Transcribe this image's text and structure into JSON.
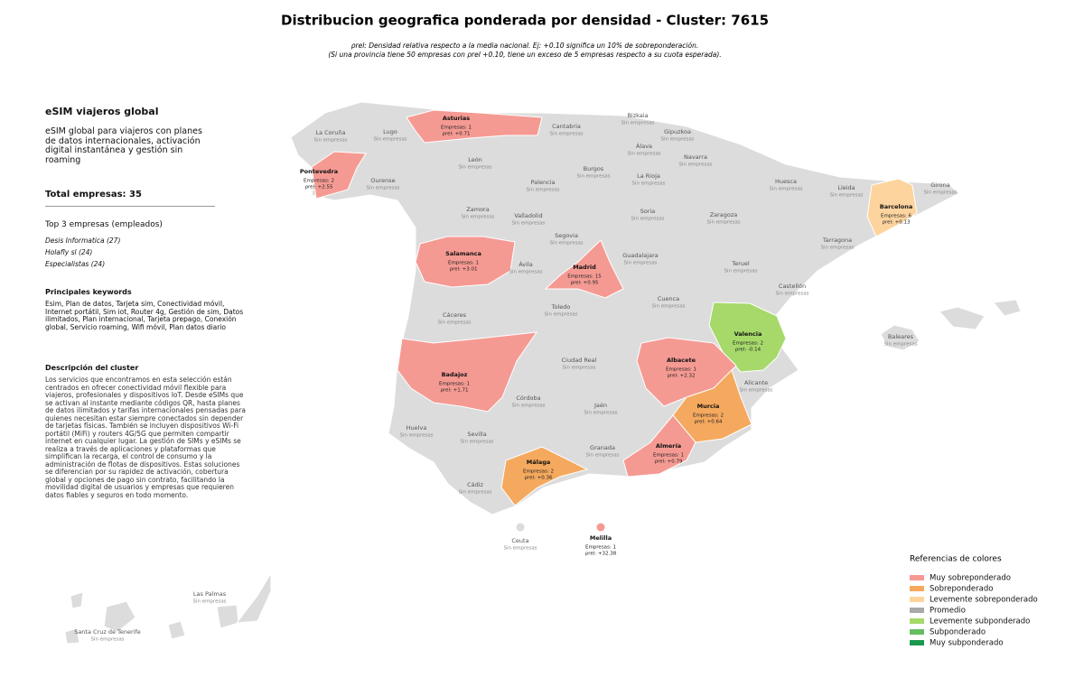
{
  "header": {
    "title": "Distribucion geografica ponderada por densidad - Cluster: 7615",
    "subtitle": [
      "ρrel: Densidad relativa respecto a la media nacional. Ej: +0.10 significa un 10% de sobreponderación.",
      "(Si una provincia tiene 50 empresas con ρrel +0.10, tiene un exceso de 5 empresas respecto a su cuota esperada)."
    ]
  },
  "sidebar": {
    "name": "eSIM viajeros global",
    "summary": "eSIM global para viajeros con planes de datos internacionales, activación digital instantánea y gestión sin roaming",
    "total": "Total empresas: 35",
    "top_title": "Top 3 empresas (empleados)",
    "top": [
      "Desis Informatica (27)",
      "Holafly sl (24)",
      "Especialistas (24)"
    ],
    "keywords_title": "Principales keywords",
    "keywords": "Esim, Plan de datos, Tarjeta sim, Conectividad móvil, Internet portátil, Sim iot, Router 4g, Gestión de sim, Datos ilimitados, Plan internacional, Tarjeta prepago, Conexión global, Servicio roaming, Wifi móvil, Plan datos diario",
    "description_title": "Descripción del cluster",
    "description": "Los servicios que encontramos en esta selección están centrados en ofrecer conectividad móvil flexible para viajeros, profesionales y dispositivos IoT. Desde eSIMs que se activan al instante mediante códigos QR, hasta planes de datos ilimitados y tarifas internacionales pensadas para quienes necesitan estar siempre conectados sin depender de tarjetas físicas. También se incluyen dispositivos Wi-Fi portátil (MiFi) y routers 4G/5G que permiten compartir internet en cualquier lugar. La gestión de SIMs y eSIMs se realiza a través de aplicaciones y plataformas que simplifican la recarga, el control de consumo y la administración de flotas de dispositivos. Estas soluciones se diferencian por su rapidez de activación, cobertura global y opciones de pago sin contrato, facilitando la movilidad digital de usuarios y empresas que requieren datos fiables y seguros en todo momento."
  },
  "provinces": [
    {
      "name": "Asturias",
      "empresas": "Empresas: 1",
      "rho": "ρrel: +0.71",
      "color": "#f59a93"
    },
    {
      "name": "Pontevedra",
      "empresas": "Empresas: 2",
      "rho": "ρrel: +2.55",
      "color": "#f59a93"
    },
    {
      "name": "La Coruña",
      "status": "Sin empresas"
    },
    {
      "name": "Lugo",
      "status": "Sin empresas"
    },
    {
      "name": "Ourense",
      "status": "Sin empresas"
    },
    {
      "name": "León",
      "status": "Sin empresas"
    },
    {
      "name": "Cantabria",
      "status": "Sin empresas"
    },
    {
      "name": "Bizkaia",
      "status": "Sin empresas"
    },
    {
      "name": "Gipuzkoa",
      "status": "Sin empresas"
    },
    {
      "name": "Álava",
      "status": "Sin empresas"
    },
    {
      "name": "Navarra",
      "status": "Sin empresas"
    },
    {
      "name": "Palencia",
      "status": "Sin empresas"
    },
    {
      "name": "Burgos",
      "status": "Sin empresas"
    },
    {
      "name": "La Rioja",
      "status": "Sin empresas"
    },
    {
      "name": "Huesca",
      "status": "Sin empresas"
    },
    {
      "name": "Lleida",
      "status": "Sin empresas"
    },
    {
      "name": "Girona",
      "status": "Sin empresas"
    },
    {
      "name": "Barcelona",
      "empresas": "Empresas: 6",
      "rho": "ρrel: +0.13",
      "color": "#fdd49e"
    },
    {
      "name": "Zamora",
      "status": "Sin empresas"
    },
    {
      "name": "Valladolid",
      "status": "Sin empresas"
    },
    {
      "name": "Soria",
      "status": "Sin empresas"
    },
    {
      "name": "Zaragoza",
      "status": "Sin empresas"
    },
    {
      "name": "Segovia",
      "status": "Sin empresas"
    },
    {
      "name": "Tarragona",
      "status": "Sin empresas"
    },
    {
      "name": "Salamanca",
      "empresas": "Empresas: 1",
      "rho": "ρrel: +3.01",
      "color": "#f59a93"
    },
    {
      "name": "Ávila",
      "status": "Sin empresas"
    },
    {
      "name": "Madrid",
      "empresas": "Empresas: 15",
      "rho": "ρrel: +0.95",
      "color": "#f59a93"
    },
    {
      "name": "Guadalajara",
      "status": "Sin empresas"
    },
    {
      "name": "Teruel",
      "status": "Sin empresas"
    },
    {
      "name": "Castellón",
      "status": "Sin empresas"
    },
    {
      "name": "Cáceres",
      "status": "Sin empresas"
    },
    {
      "name": "Toledo",
      "status": "Sin empresas"
    },
    {
      "name": "Cuenca",
      "status": "Sin empresas"
    },
    {
      "name": "Valencia",
      "empresas": "Empresas: 2",
      "rho": "ρrel: -0.14",
      "color": "#a6d96a"
    },
    {
      "name": "Baleares",
      "status": "Sin empresas"
    },
    {
      "name": "Badajoz",
      "empresas": "Empresas: 1",
      "rho": "ρrel: +1.71",
      "color": "#f59a93"
    },
    {
      "name": "Ciudad Real",
      "status": "Sin empresas"
    },
    {
      "name": "Albacete",
      "empresas": "Empresas: 1",
      "rho": "ρrel: +2.32",
      "color": "#f59a93"
    },
    {
      "name": "Alicante",
      "status": "Sin empresas"
    },
    {
      "name": "Córdoba",
      "status": "Sin empresas"
    },
    {
      "name": "Jaén",
      "status": "Sin empresas"
    },
    {
      "name": "Murcia",
      "empresas": "Empresas: 2",
      "rho": "ρrel: +0.64",
      "color": "#f5a95e"
    },
    {
      "name": "Huelva",
      "status": "Sin empresas"
    },
    {
      "name": "Sevilla",
      "status": "Sin empresas"
    },
    {
      "name": "Granada",
      "status": "Sin empresas"
    },
    {
      "name": "Almería",
      "empresas": "Empresas: 1",
      "rho": "ρrel: +0.79",
      "color": "#f59a93"
    },
    {
      "name": "Málaga",
      "empresas": "Empresas: 2",
      "rho": "ρrel: +0.36",
      "color": "#f5a95e"
    },
    {
      "name": "Cádiz",
      "status": "Sin empresas"
    },
    {
      "name": "Ceuta",
      "status": "Sin empresas"
    },
    {
      "name": "Melilla",
      "empresas": "Empresas: 1",
      "rho": "ρrel: +32.38",
      "color": "#f59a93"
    },
    {
      "name": "Las Palmas",
      "status": "Sin empresas"
    },
    {
      "name": "Santa Cruz de Tenerife",
      "status": "Sin empresas"
    }
  ],
  "legend": {
    "title": "Referencias de colores",
    "items": [
      {
        "label": "Muy sobreponderado",
        "color": "#f59a93"
      },
      {
        "label": "Sobreponderado",
        "color": "#f5a95e"
      },
      {
        "label": "Levemente sobreponderado",
        "color": "#fdd49e"
      },
      {
        "label": "Promedio",
        "color": "#a9a9a9"
      },
      {
        "label": "Levemente subponderado",
        "color": "#a6d96a"
      },
      {
        "label": "Subponderado",
        "color": "#66bd63"
      },
      {
        "label": "Muy subponderado",
        "color": "#1a9850"
      }
    ]
  }
}
